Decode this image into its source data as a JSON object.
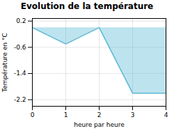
{
  "chart_data": {
    "type": "area",
    "title": "Evolution de la température",
    "xlabel": "heure par heure",
    "ylabel": "Température en °C",
    "x": [
      0,
      1,
      2,
      3,
      4
    ],
    "values": [
      0.0,
      -0.5,
      0.0,
      -2.0,
      -2.0
    ],
    "color": "#5bb8d4",
    "xlim": [
      0,
      4
    ],
    "ylim": [
      -2.4,
      0.28
    ],
    "xticks": [
      0,
      1,
      2,
      3,
      4
    ],
    "yticks": [
      0.2,
      -0.6,
      -1.4,
      -2.2
    ],
    "grid": true
  }
}
